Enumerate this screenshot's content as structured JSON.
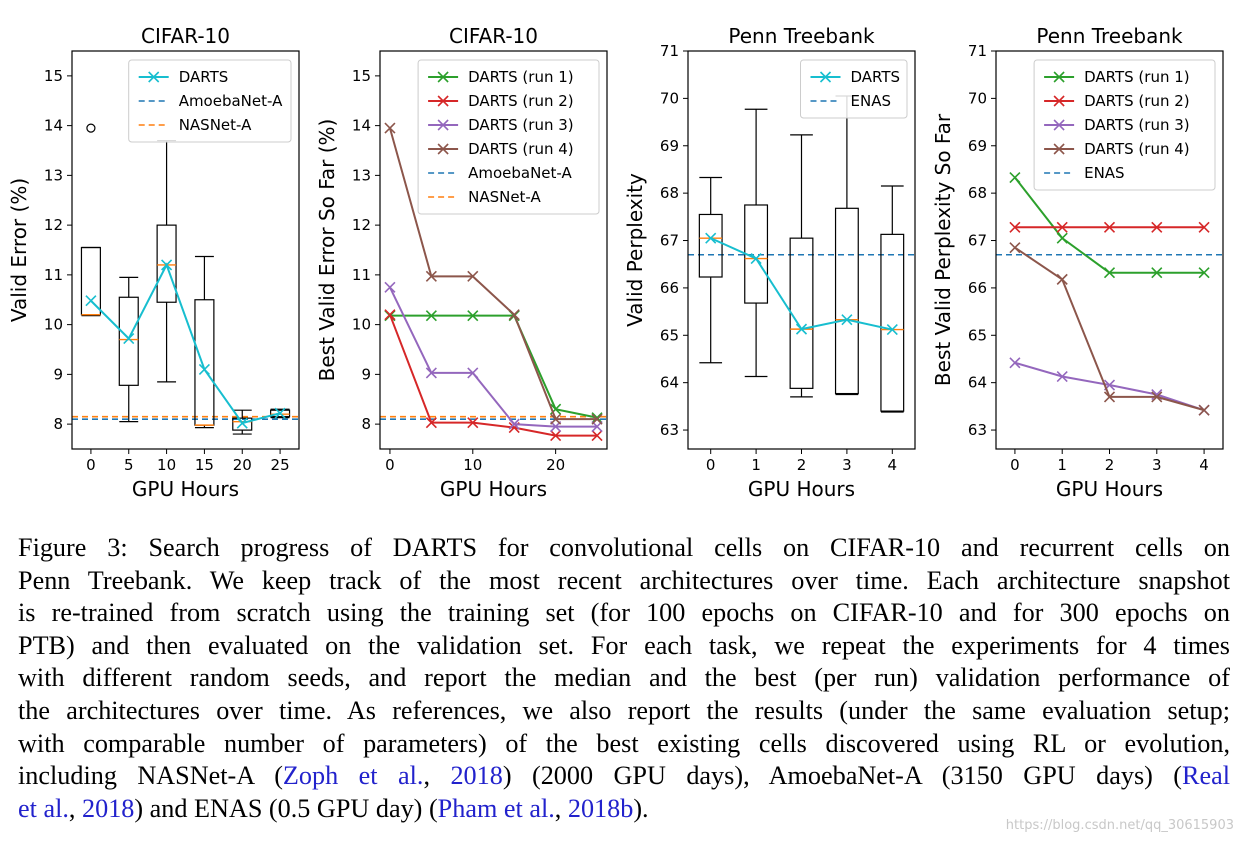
{
  "colors": {
    "cyan": "#17becf",
    "blue": "#1f77b4",
    "orange": "#ff7f0e",
    "green": "#2ca02c",
    "red": "#d62728",
    "purple": "#9467bd",
    "brown": "#8c564b"
  },
  "chart_data": [
    {
      "type": "box",
      "title": "CIFAR-10",
      "xlabel": "GPU Hours",
      "ylabel": "Valid Error (%)",
      "xlim": [
        -2.5,
        27.5
      ],
      "ylim": [
        7.5,
        15.5
      ],
      "xticks": [
        0,
        5,
        10,
        15,
        20,
        25
      ],
      "xtick_labels": [
        "0",
        "5",
        "10",
        "15",
        "20",
        "25"
      ],
      "yticks": [
        8,
        9,
        10,
        11,
        12,
        13,
        14,
        15
      ],
      "ytick_labels": [
        "8",
        "9",
        "10",
        "11",
        "12",
        "13",
        "14",
        "15"
      ],
      "boxes": [
        {
          "x": 0,
          "q1": 10.2,
          "q3": 11.55,
          "whislo": 10.18,
          "whishi": 11.55,
          "med": 10.2,
          "fliers": [
            13.95
          ]
        },
        {
          "x": 5,
          "q1": 8.78,
          "q3": 10.55,
          "whislo": 8.05,
          "whishi": 10.95,
          "med": 9.7,
          "fliers": []
        },
        {
          "x": 10,
          "q1": 10.45,
          "q3": 12.0,
          "whislo": 8.85,
          "whishi": 13.7,
          "med": 11.2,
          "fliers": []
        },
        {
          "x": 15,
          "q1": 7.98,
          "q3": 10.5,
          "whislo": 7.93,
          "whishi": 11.37,
          "med": 7.98,
          "fliers": []
        },
        {
          "x": 20,
          "q1": 7.88,
          "q3": 8.12,
          "whislo": 7.8,
          "whishi": 8.28,
          "med": 8.05,
          "fliers": []
        },
        {
          "x": 25,
          "q1": 8.15,
          "q3": 8.28,
          "whislo": 8.13,
          "whishi": 8.3,
          "med": 8.2,
          "fliers": []
        }
      ],
      "series": [
        {
          "name": "DARTS",
          "style": "line-x",
          "color": "cyan",
          "x": [
            0,
            5,
            10,
            15,
            20,
            25
          ],
          "y": [
            10.48,
            9.72,
            11.2,
            9.1,
            8.02,
            8.22
          ]
        }
      ],
      "hlines": [
        {
          "name": "AmoebaNet-A",
          "y": 8.1,
          "color": "blue"
        },
        {
          "name": "NASNet-A",
          "y": 8.15,
          "color": "orange"
        }
      ],
      "legend": [
        "DARTS",
        "AmoebaNet-A",
        "NASNet-A"
      ]
    },
    {
      "type": "line",
      "title": "CIFAR-10",
      "xlabel": "GPU Hours",
      "ylabel": "Best Valid Error So Far (%)",
      "xlim": [
        -1.2,
        26.2
      ],
      "ylim": [
        7.5,
        15.5
      ],
      "xticks": [
        0,
        10,
        20
      ],
      "xtick_labels": [
        "0",
        "10",
        "20"
      ],
      "yticks": [
        8,
        9,
        10,
        11,
        12,
        13,
        14,
        15
      ],
      "ytick_labels": [
        "8",
        "9",
        "10",
        "11",
        "12",
        "13",
        "14",
        "15"
      ],
      "boxes": [],
      "series": [
        {
          "name": "DARTS (run 1)",
          "style": "line-x",
          "color": "green",
          "x": [
            0,
            5,
            10,
            15,
            20,
            25
          ],
          "y": [
            10.18,
            10.18,
            10.18,
            10.18,
            8.3,
            8.13
          ]
        },
        {
          "name": "DARTS (run 2)",
          "style": "line-x",
          "color": "red",
          "x": [
            0,
            5,
            10,
            15,
            20,
            25
          ],
          "y": [
            10.2,
            8.03,
            8.03,
            7.93,
            7.77,
            7.77
          ]
        },
        {
          "name": "DARTS (run 3)",
          "style": "line-x",
          "color": "purple",
          "x": [
            0,
            5,
            10,
            15,
            20,
            25
          ],
          "y": [
            10.75,
            9.03,
            9.03,
            8.0,
            7.95,
            7.95
          ]
        },
        {
          "name": "DARTS (run 4)",
          "style": "line-x",
          "color": "brown",
          "x": [
            0,
            5,
            10,
            15,
            20,
            25
          ],
          "y": [
            13.95,
            10.97,
            10.97,
            10.2,
            8.1,
            8.1
          ]
        }
      ],
      "hlines": [
        {
          "name": "AmoebaNet-A",
          "y": 8.1,
          "color": "blue"
        },
        {
          "name": "NASNet-A",
          "y": 8.15,
          "color": "orange"
        }
      ],
      "legend": [
        "DARTS (run 1)",
        "DARTS (run 2)",
        "DARTS (run 3)",
        "DARTS (run 4)",
        "AmoebaNet-A",
        "NASNet-A"
      ]
    },
    {
      "type": "box",
      "title": "Penn Treebank",
      "xlabel": "GPU Hours",
      "ylabel": "Valid Perplexity",
      "xlim": [
        -0.5,
        4.5
      ],
      "ylim": [
        62.6,
        71.0
      ],
      "xticks": [
        0,
        1,
        2,
        3,
        4
      ],
      "xtick_labels": [
        "0",
        "1",
        "2",
        "3",
        "4"
      ],
      "yticks": [
        63,
        64,
        65,
        66,
        67,
        68,
        69,
        70,
        71
      ],
      "ytick_labels": [
        "63",
        "64",
        "65",
        "66",
        "67",
        "68",
        "69",
        "70",
        "71"
      ],
      "boxes": [
        {
          "x": 0,
          "q1": 66.23,
          "q3": 67.55,
          "whislo": 64.42,
          "whishi": 68.33,
          "med": 67.05,
          "fliers": []
        },
        {
          "x": 1,
          "q1": 65.68,
          "q3": 67.75,
          "whislo": 64.13,
          "whishi": 69.77,
          "med": 66.62,
          "fliers": []
        },
        {
          "x": 2,
          "q1": 63.88,
          "q3": 67.05,
          "whislo": 63.7,
          "whishi": 69.23,
          "med": 65.13,
          "fliers": []
        },
        {
          "x": 3,
          "q1": 63.77,
          "q3": 67.68,
          "whislo": 63.75,
          "whishi": 70.05,
          "med": 65.33,
          "fliers": []
        },
        {
          "x": 4,
          "q1": 63.4,
          "q3": 67.13,
          "whislo": 63.38,
          "whishi": 68.15,
          "med": 65.12,
          "fliers": []
        }
      ],
      "series": [
        {
          "name": "DARTS",
          "style": "line-x",
          "color": "cyan",
          "x": [
            0,
            1,
            2,
            3,
            4
          ],
          "y": [
            67.05,
            66.62,
            65.13,
            65.33,
            65.12
          ]
        }
      ],
      "hlines": [
        {
          "name": "ENAS",
          "y": 66.7,
          "color": "blue"
        }
      ],
      "legend": [
        "DARTS",
        "ENAS"
      ]
    },
    {
      "type": "line",
      "title": "Penn Treebank",
      "xlabel": "GPU Hours",
      "ylabel": "Best Valid Perplexity So Far",
      "xlim": [
        -0.4,
        4.4
      ],
      "ylim": [
        62.6,
        71.0
      ],
      "xticks": [
        0,
        1,
        2,
        3,
        4
      ],
      "xtick_labels": [
        "0",
        "1",
        "2",
        "3",
        "4"
      ],
      "yticks": [
        63,
        64,
        65,
        66,
        67,
        68,
        69,
        70,
        71
      ],
      "ytick_labels": [
        "63",
        "64",
        "65",
        "66",
        "67",
        "68",
        "69",
        "70",
        "71"
      ],
      "boxes": [],
      "series": [
        {
          "name": "DARTS (run 1)",
          "style": "line-x",
          "color": "green",
          "x": [
            0,
            1,
            2,
            3,
            4
          ],
          "y": [
            68.33,
            67.05,
            66.32,
            66.32,
            66.32
          ]
        },
        {
          "name": "DARTS (run 2)",
          "style": "line-x",
          "color": "red",
          "x": [
            0,
            1,
            2,
            3,
            4
          ],
          "y": [
            67.28,
            67.28,
            67.28,
            67.28,
            67.28
          ]
        },
        {
          "name": "DARTS (run 3)",
          "style": "line-x",
          "color": "purple",
          "x": [
            0,
            1,
            2,
            3,
            4
          ],
          "y": [
            64.42,
            64.13,
            63.95,
            63.75,
            63.42
          ]
        },
        {
          "name": "DARTS (run 4)",
          "style": "line-x",
          "color": "brown",
          "x": [
            0,
            1,
            2,
            3,
            4
          ],
          "y": [
            66.85,
            66.18,
            63.7,
            63.7,
            63.42
          ]
        }
      ],
      "hlines": [
        {
          "name": "ENAS",
          "y": 66.7,
          "color": "blue"
        }
      ],
      "legend": [
        "DARTS (run 1)",
        "DARTS (run 2)",
        "DARTS (run 3)",
        "DARTS (run 4)",
        "ENAS"
      ]
    }
  ],
  "caption": {
    "lines": [
      [
        "Figure 3: Search progress of DARTS for convolutional cells on CIFAR-10 and recurrent cells on"
      ],
      [
        "Penn Treebank. We keep track of the most recent architectures over time. Each architecture snapshot"
      ],
      [
        "is re-trained from scratch using the training set (for 100 epochs on CIFAR-10 and for 300 epochs on"
      ],
      [
        "PTB) and then evaluated on the validation set. For each task, we repeat the experiments for 4 times"
      ],
      [
        "with different random seeds, and report the median and the best (per run) validation performance of"
      ],
      [
        "the architectures over time. As references, we also report the results (under the same evaluation setup;"
      ],
      [
        "with comparable number of parameters) of the best existing cells discovered using RL or evolution,"
      ],
      [
        "including NASNet-A (",
        "Zoph et al.",
        ", ",
        "2018",
        ") (2000 GPU days), AmoebaNet-A (3150 GPU days) (",
        "Real"
      ],
      [
        "et al.",
        ", ",
        "2018",
        ") and ENAS (0.5 GPU day) (",
        "Pham et al.",
        ", ",
        "2018b",
        ")."
      ]
    ],
    "citation_parts": [
      [],
      [],
      [],
      [],
      [],
      [],
      [],
      [
        1,
        3,
        5
      ],
      [
        0,
        2,
        4,
        6
      ]
    ]
  },
  "watermark": "https://blog.csdn.net/qq_30615903"
}
